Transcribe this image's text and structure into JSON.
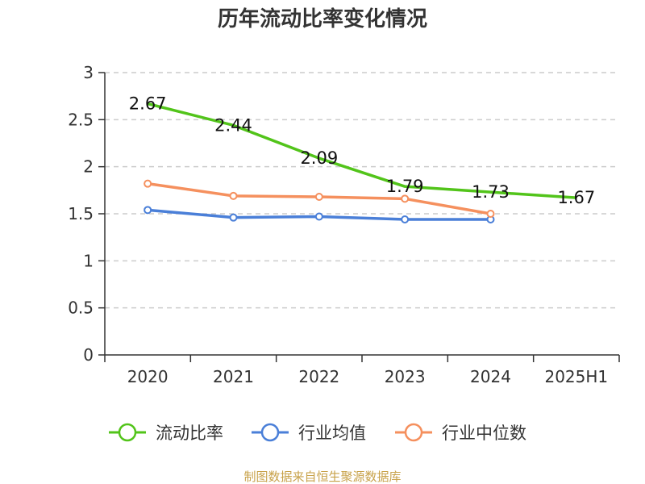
{
  "chart_data": {
    "type": "line",
    "title": "历年流动比率变化情况",
    "xlabel": "",
    "ylabel": "",
    "categories": [
      "2020",
      "2021",
      "2022",
      "2023",
      "2024",
      "2025H1"
    ],
    "ylim": [
      0,
      3
    ],
    "yticks": [
      "0",
      "0.5",
      "1",
      "1.5",
      "2",
      "2.5",
      "3"
    ],
    "grid": true,
    "legend_position": "bottom",
    "series": [
      {
        "name": "流动比率",
        "color": "#52c41a",
        "values": [
          2.67,
          2.44,
          2.09,
          1.79,
          1.73,
          1.67
        ],
        "labels": [
          "2.67",
          "2.44",
          "2.09",
          "1.79",
          "1.73",
          "1.67"
        ]
      },
      {
        "name": "行业均值",
        "color": "#4a7fd8",
        "values": [
          1.54,
          1.46,
          1.47,
          1.44,
          1.44,
          null
        ]
      },
      {
        "name": "行业中位数",
        "color": "#f5905e",
        "values": [
          1.82,
          1.69,
          1.68,
          1.66,
          1.5,
          null
        ]
      }
    ]
  },
  "source": "制图数据来自恒生聚源数据库"
}
